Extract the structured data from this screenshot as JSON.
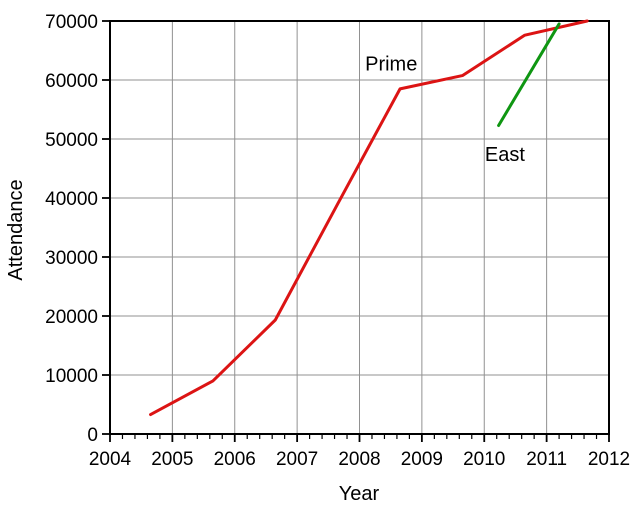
{
  "chart_data": {
    "type": "line",
    "title": "",
    "xlabel": "Year",
    "ylabel": "Attendance",
    "xlim": [
      2004,
      2012
    ],
    "ylim": [
      0,
      70000
    ],
    "x_ticks": [
      2004,
      2005,
      2006,
      2007,
      2008,
      2009,
      2010,
      2011,
      2012
    ],
    "y_ticks": [
      0,
      10000,
      20000,
      30000,
      40000,
      50000,
      60000,
      70000
    ],
    "x_minor_tick_interval": 0.2,
    "grid": true,
    "legend_position": "inline-annotations",
    "colors": {
      "grid": "#919191",
      "axis": "#000000",
      "text": "#000000",
      "background": "#ffffff"
    },
    "series": [
      {
        "name": "Prime",
        "color": "#dc1414",
        "x": [
          2004.65,
          2005.65,
          2006.65,
          2007.65,
          2008.65,
          2009.65,
          2010.65,
          2011.65
        ],
        "y": [
          3300,
          9000,
          19323,
          39000,
          58500,
          60750,
          67600,
          70000
        ]
      },
      {
        "name": "East",
        "color": "#0f9612",
        "x": [
          2010.23,
          2011.2
        ],
        "y": [
          52290,
          69500
        ]
      }
    ],
    "annotations": [
      {
        "text": "Prime",
        "x": 2008.09,
        "y": 61600
      },
      {
        "text": "East",
        "x": 2010.01,
        "y": 46300
      }
    ]
  }
}
